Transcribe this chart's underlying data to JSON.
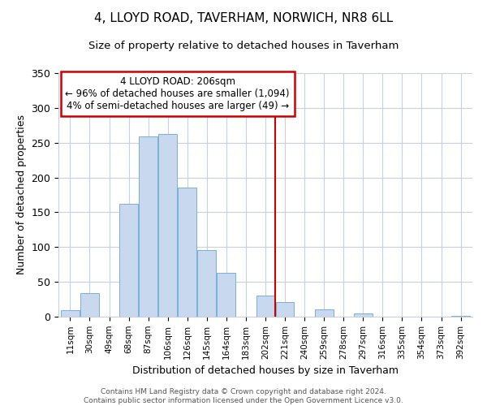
{
  "title": "4, LLOYD ROAD, TAVERHAM, NORWICH, NR8 6LL",
  "subtitle": "Size of property relative to detached houses in Taverham",
  "xlabel": "Distribution of detached houses by size in Taverham",
  "ylabel": "Number of detached properties",
  "bar_labels": [
    "11sqm",
    "30sqm",
    "49sqm",
    "68sqm",
    "87sqm",
    "106sqm",
    "126sqm",
    "145sqm",
    "164sqm",
    "183sqm",
    "202sqm",
    "221sqm",
    "240sqm",
    "259sqm",
    "278sqm",
    "297sqm",
    "316sqm",
    "335sqm",
    "354sqm",
    "373sqm",
    "392sqm"
  ],
  "bar_values": [
    9,
    34,
    0,
    162,
    259,
    263,
    185,
    96,
    63,
    0,
    30,
    21,
    0,
    11,
    0,
    5,
    0,
    0,
    0,
    0,
    1
  ],
  "bar_color": "#c8d8ee",
  "bar_edge_color": "#7aafd4",
  "vline_x": 10.5,
  "vline_color": "#cc0000",
  "annotation_title": "4 LLOYD ROAD: 206sqm",
  "annotation_line1": "← 96% of detached houses are smaller (1,094)",
  "annotation_line2": "4% of semi-detached houses are larger (49) →",
  "annotation_box_color": "#ffffff",
  "annotation_box_edge": "#cc0000",
  "ylim": [
    0,
    350
  ],
  "yticks": [
    0,
    50,
    100,
    150,
    200,
    250,
    300,
    350
  ],
  "footer1": "Contains HM Land Registry data © Crown copyright and database right 2024.",
  "footer2": "Contains public sector information licensed under the Open Government Licence v3.0.",
  "background_color": "#ffffff",
  "grid_color": "#c8d0dc"
}
